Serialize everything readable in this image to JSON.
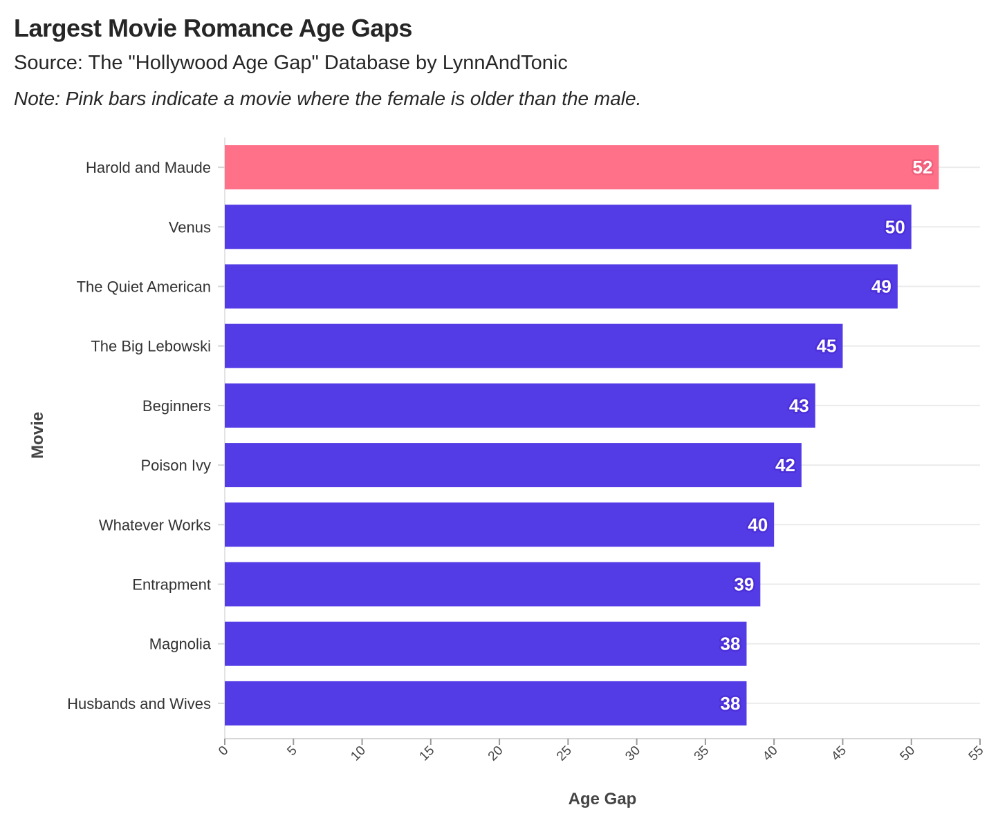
{
  "chart_data": {
    "type": "bar",
    "orientation": "horizontal",
    "title": "Largest Movie Romance Age Gaps",
    "subtitle": "Source: The \"Hollywood Age Gap\" Database by LynnAndTonic",
    "note": "Note: Pink bars indicate a movie where the female is older than the male.",
    "xlabel": "Age Gap",
    "ylabel": "Movie",
    "xlim": [
      0,
      55
    ],
    "xticks": [
      0,
      5,
      10,
      15,
      20,
      25,
      30,
      35,
      40,
      45,
      50,
      55
    ],
    "categories": [
      "Harold and Maude",
      "Venus",
      "The Quiet American",
      "The Big Lebowski",
      "Beginners",
      "Poison Ivy",
      "Whatever Works",
      "Entrapment",
      "Magnolia",
      "Husbands and Wives"
    ],
    "values": [
      52,
      50,
      49,
      45,
      43,
      42,
      40,
      39,
      38,
      38
    ],
    "female_older": [
      true,
      false,
      false,
      false,
      false,
      false,
      false,
      false,
      false,
      false
    ],
    "colors": {
      "male_older": "#533be6",
      "female_older": "#ff7089",
      "male_older_stroke": "#4b2fd9",
      "female_older_stroke": "#f0607c"
    },
    "grid": true
  }
}
